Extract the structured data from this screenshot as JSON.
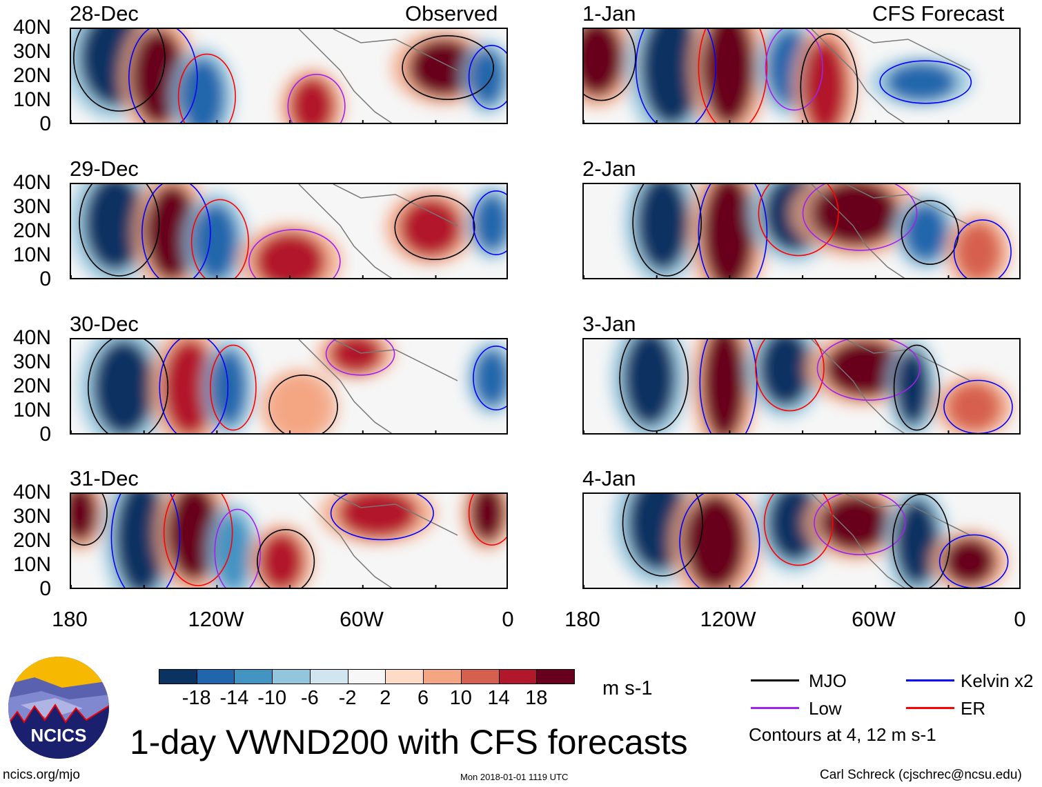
{
  "panels": {
    "left": {
      "header": "Observed",
      "dates": [
        "28-Dec",
        "29-Dec",
        "30-Dec",
        "31-Dec"
      ]
    },
    "right": {
      "header": "CFS Forecast",
      "dates": [
        "1-Jan",
        "2-Jan",
        "3-Jan",
        "4-Jan"
      ]
    }
  },
  "axes": {
    "y_labels": [
      "40N",
      "30N",
      "20N",
      "10N",
      "0"
    ],
    "x_labels": [
      "180",
      "120W",
      "60W",
      "0"
    ]
  },
  "colorbar": {
    "colors": [
      "#0a3362",
      "#2166ac",
      "#4393c3",
      "#92c5de",
      "#d1e5f0",
      "#f7f7f7",
      "#fddbc7",
      "#f4a582",
      "#d6604d",
      "#b2182b",
      "#67001f"
    ],
    "labels": [
      "-18",
      "-14",
      "-10",
      "-6",
      "-2",
      "2",
      "6",
      "10",
      "14",
      "18"
    ],
    "units": "m s-1"
  },
  "legend": {
    "items": [
      {
        "label": "MJO",
        "color": "#000000"
      },
      {
        "label": "Kelvin x2",
        "color": "#0000ff"
      },
      {
        "label": "Low",
        "color": "#a020f0"
      },
      {
        "label": "ER",
        "color": "#ff0000"
      }
    ],
    "contours_note": "Contours at 4, 12 m s-1"
  },
  "logo": {
    "text": "NCICS"
  },
  "title": "1-day VWND200 with CFS forecasts",
  "footer": {
    "url": "ncics.org/mjo",
    "timestamp": "Mon 2018-01-01 1119 UTC",
    "author": "Carl Schreck (cjschrec@ncsu.edu)"
  }
}
